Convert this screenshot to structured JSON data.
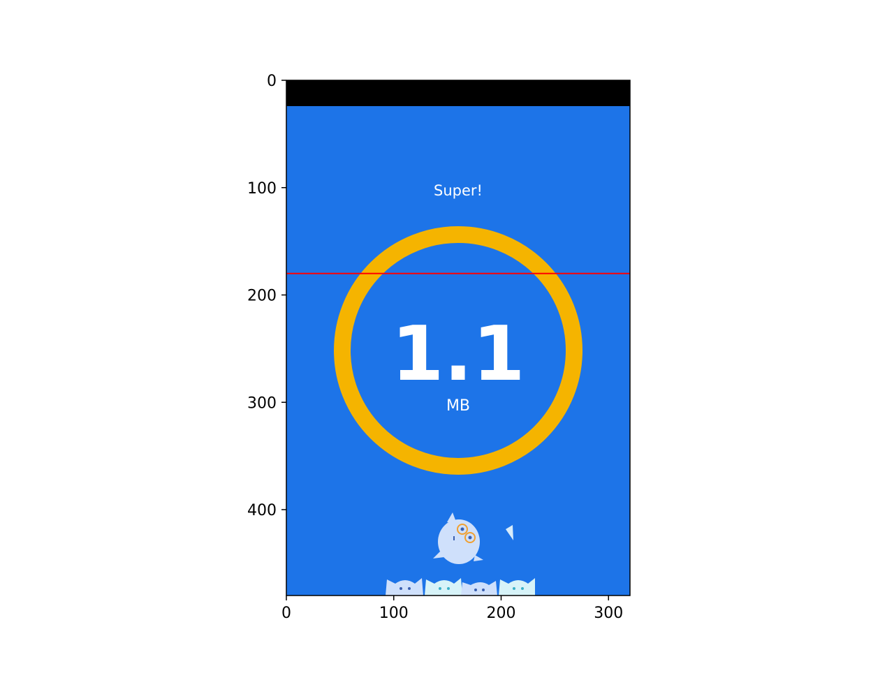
{
  "screen": {
    "status_bar_color": "#000000",
    "background_color": "#1d74e8",
    "rating_text": "Super!",
    "speed_value": "1.1",
    "speed_unit": "MB",
    "ring_color": "#f5b400",
    "text_color": "#ffffff",
    "marker_line_color": "#ff0000",
    "illustration": "mascot-characters"
  },
  "axes": {
    "x_ticks": [
      "0",
      "100",
      "200",
      "300"
    ],
    "y_ticks": [
      "0",
      "100",
      "200",
      "300",
      "400"
    ],
    "x_range": [
      0,
      320
    ],
    "y_range": [
      0,
      480
    ],
    "marker_line_y": 180
  }
}
